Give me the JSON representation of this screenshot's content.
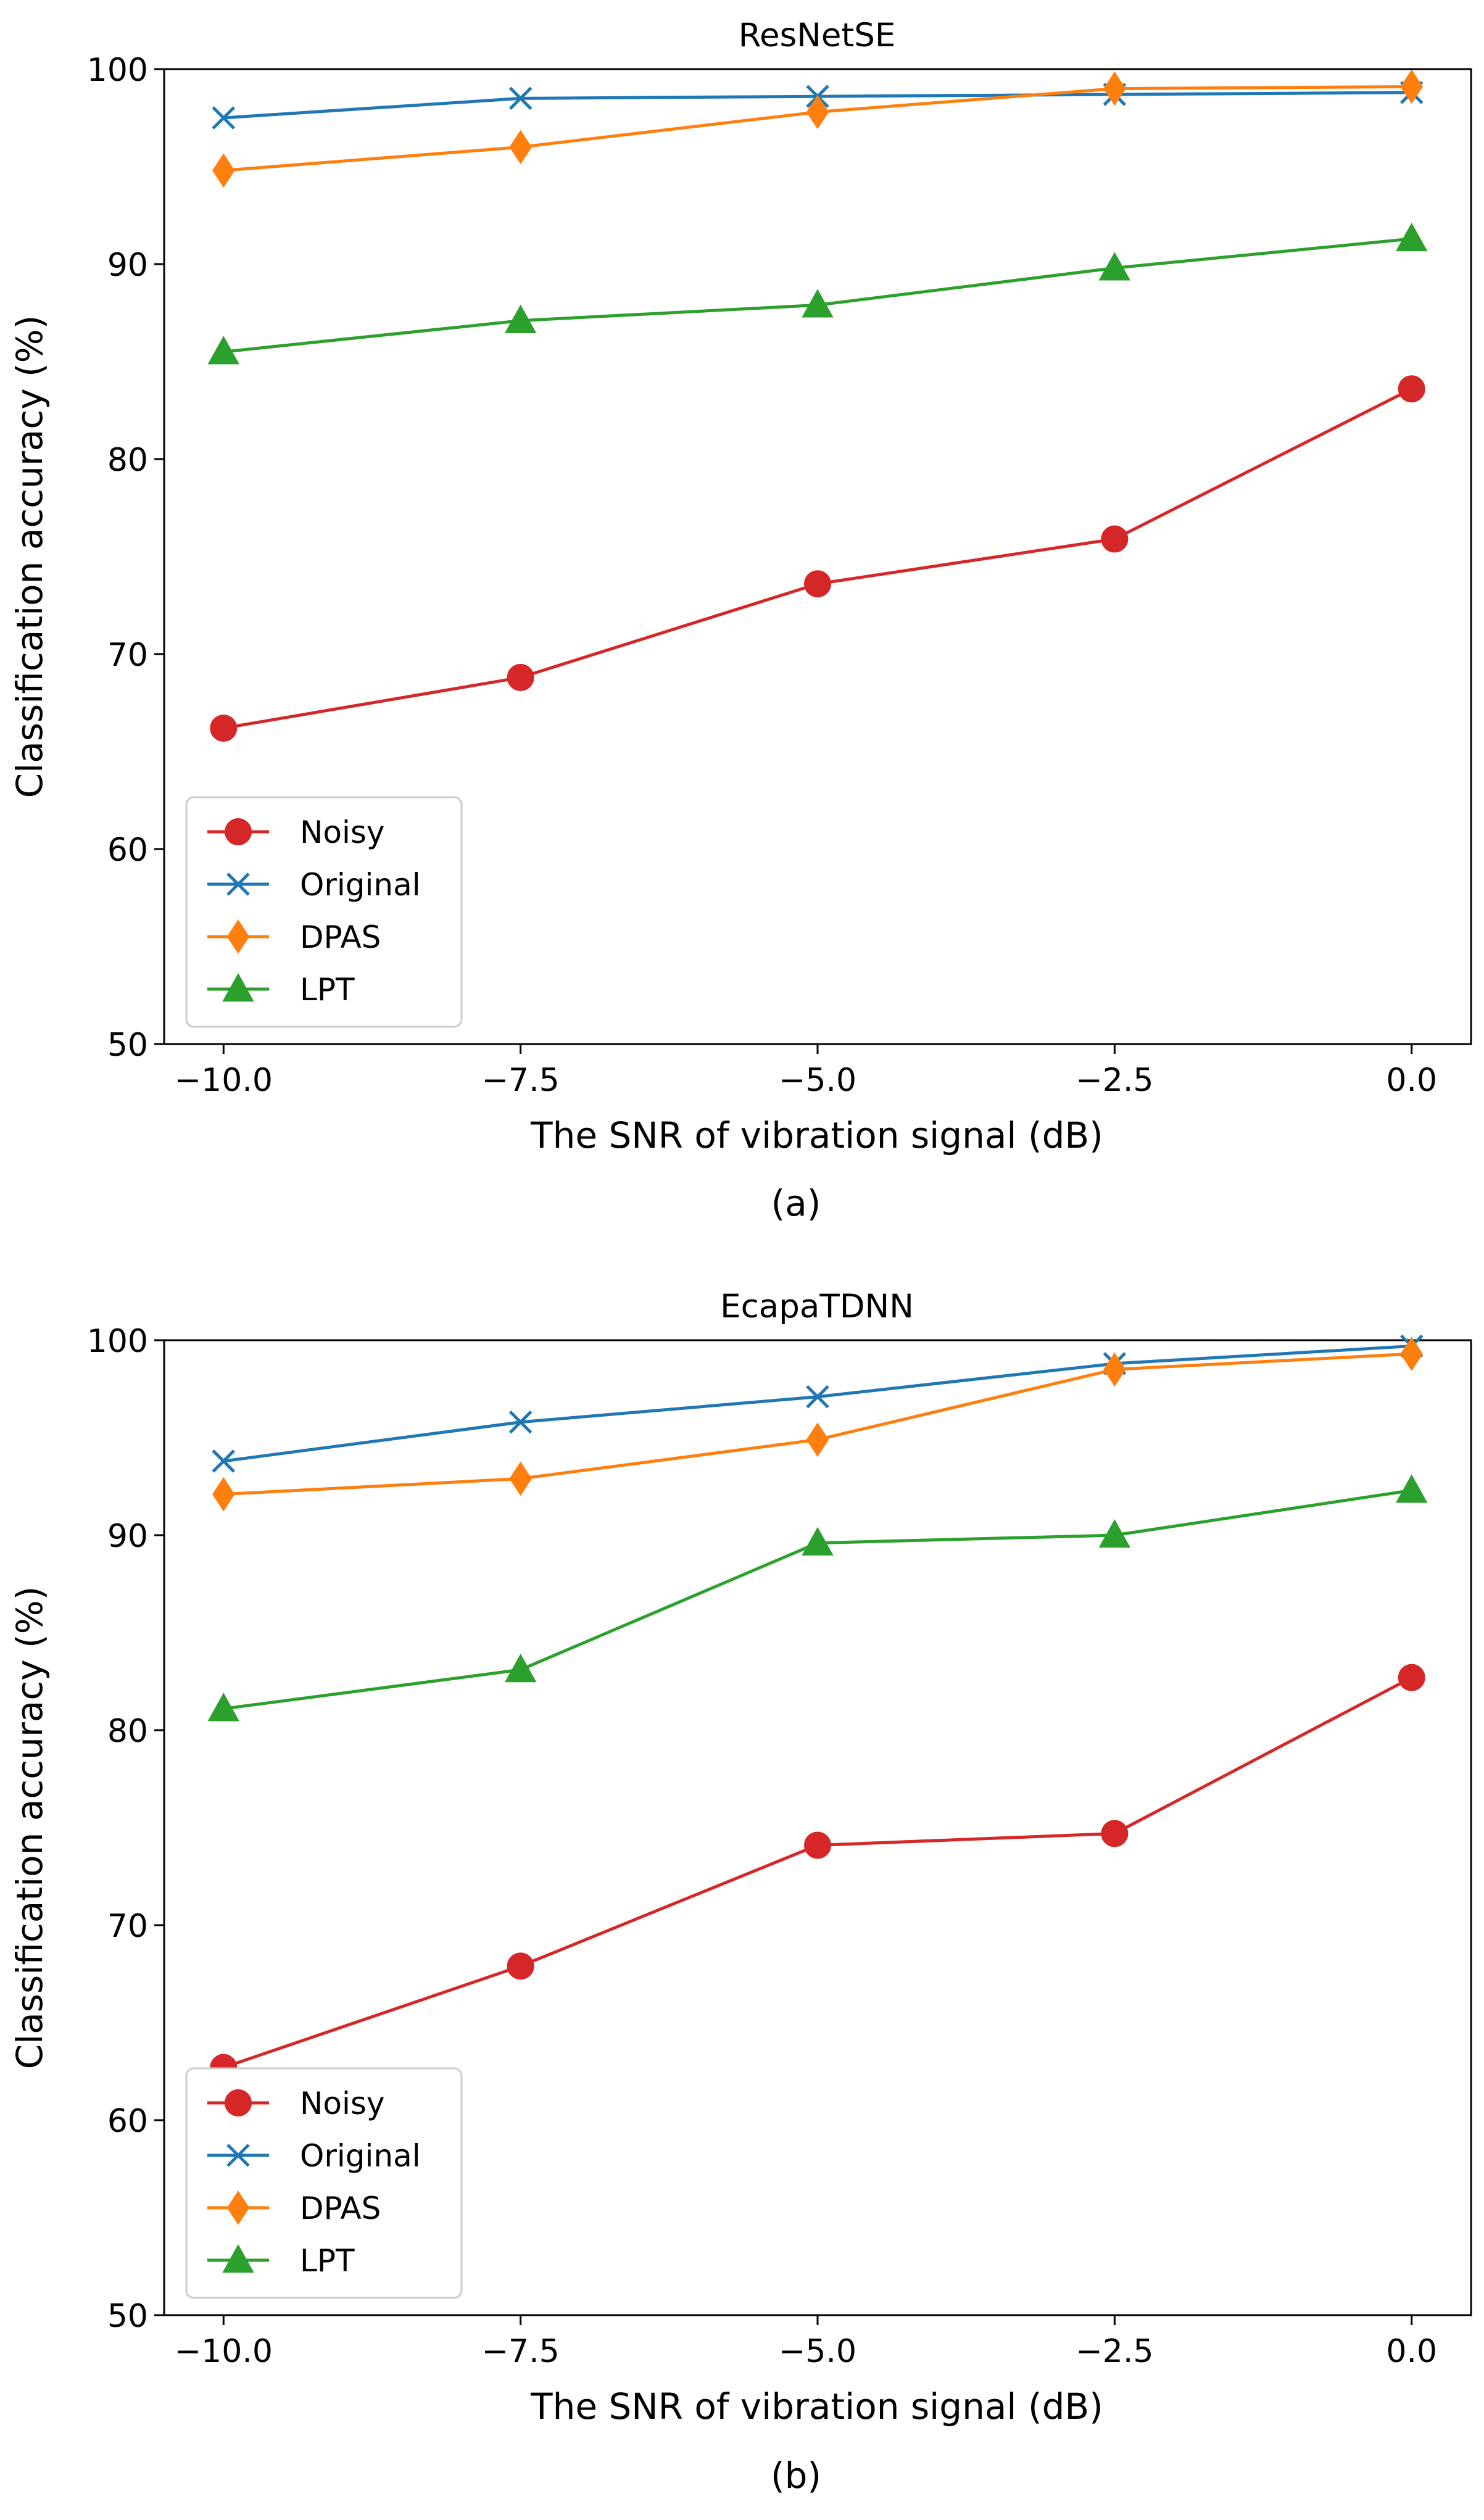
{
  "chart_data": [
    {
      "type": "line",
      "title": "ResNetSE",
      "xlabel": "The SNR of vibration signal (dB)",
      "ylabel": "Classification accuracy (%)",
      "caption": "(a)",
      "x": [
        -10.0,
        -7.5,
        -5.0,
        -2.5,
        0.0
      ],
      "xlim": [
        -10.5,
        0.5
      ],
      "ylim": [
        50,
        100
      ],
      "xticks": [
        -10.0,
        -7.5,
        -5.0,
        -2.5,
        0.0
      ],
      "xtick_labels": [
        "−10.0",
        "−7.5",
        "−5.0",
        "−2.5",
        "0.0"
      ],
      "yticks": [
        50,
        60,
        70,
        80,
        90,
        100
      ],
      "ytick_labels": [
        "50",
        "60",
        "70",
        "80",
        "90",
        "100"
      ],
      "legend_position": "lower-left",
      "grid": false,
      "series": [
        {
          "name": "Noisy",
          "color": "#d62728",
          "marker": "circle",
          "values": [
            66.2,
            68.8,
            73.6,
            75.9,
            83.6
          ]
        },
        {
          "name": "Original",
          "color": "#1f77b4",
          "marker": "x",
          "values": [
            97.5,
            98.5,
            98.6,
            98.7,
            98.8
          ]
        },
        {
          "name": "DPAS",
          "color": "#ff7f0e",
          "marker": "diamond",
          "values": [
            94.8,
            96.0,
            97.8,
            99.0,
            99.1
          ]
        },
        {
          "name": "LPT",
          "color": "#2ca02c",
          "marker": "triangle",
          "values": [
            85.5,
            87.1,
            87.9,
            89.8,
            91.3
          ]
        }
      ]
    },
    {
      "type": "line",
      "title": "EcapaTDNN",
      "xlabel": "The SNR of vibration signal (dB)",
      "ylabel": "Classification accuracy (%)",
      "caption": "(b)",
      "x": [
        -10.0,
        -7.5,
        -5.0,
        -2.5,
        0.0
      ],
      "xlim": [
        -10.5,
        0.5
      ],
      "ylim": [
        50,
        100
      ],
      "xticks": [
        -10.0,
        -7.5,
        -5.0,
        -2.5,
        0.0
      ],
      "xtick_labels": [
        "−10.0",
        "−7.5",
        "−5.0",
        "−2.5",
        "0.0"
      ],
      "yticks": [
        50,
        60,
        70,
        80,
        90,
        100
      ],
      "ytick_labels": [
        "50",
        "60",
        "70",
        "80",
        "90",
        "100"
      ],
      "legend_position": "lower-left",
      "grid": false,
      "series": [
        {
          "name": "Noisy",
          "color": "#d62728",
          "marker": "circle",
          "values": [
            62.7,
            67.9,
            74.1,
            74.7,
            82.7
          ]
        },
        {
          "name": "Original",
          "color": "#1f77b4",
          "marker": "x",
          "values": [
            93.8,
            95.8,
            97.1,
            98.8,
            99.7
          ]
        },
        {
          "name": "DPAS",
          "color": "#ff7f0e",
          "marker": "diamond",
          "values": [
            92.1,
            92.9,
            94.9,
            98.5,
            99.3
          ]
        },
        {
          "name": "LPT",
          "color": "#2ca02c",
          "marker": "triangle",
          "values": [
            81.1,
            83.1,
            89.6,
            90.0,
            92.3
          ]
        }
      ]
    }
  ]
}
